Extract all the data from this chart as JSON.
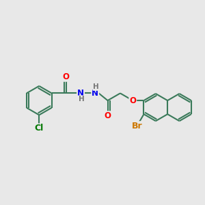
{
  "bg_color": "#e8e8e8",
  "bond_color": "#3a7a5a",
  "bond_width": 1.5,
  "atom_colors": {
    "O": "#ff0000",
    "N": "#0000ee",
    "Cl": "#007700",
    "Br": "#cc7700",
    "H": "#777777",
    "C": "#3a7a5a"
  },
  "font_size": 8.5,
  "figsize": [
    3.0,
    3.0
  ],
  "dpi": 100
}
